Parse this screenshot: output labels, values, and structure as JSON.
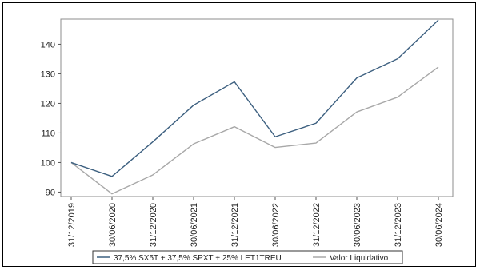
{
  "chart_data": {
    "type": "line",
    "categories": [
      "31/12/2019",
      "30/06/2020",
      "31/12/2020",
      "30/06/2021",
      "31/12/2021",
      "30/06/2022",
      "31/12/2022",
      "30/06/2023",
      "31/12/2023",
      "30/06/2024"
    ],
    "series": [
      {
        "name": "37,5% SX5T + 37,5% SPXT + 25% LET1TREU",
        "color": "#3d6080",
        "values": [
          100,
          95.3,
          107,
          119.4,
          127.3,
          108.7,
          113.3,
          128.6,
          135.1,
          148.2
        ]
      },
      {
        "name": "Valor Liquidativo",
        "color": "#a8a8a8",
        "values": [
          100,
          89.4,
          95.8,
          106.3,
          112.1,
          105.1,
          106.6,
          117.1,
          122.1,
          132.3
        ]
      }
    ],
    "yticks": [
      90,
      100,
      110,
      120,
      130,
      140
    ],
    "ylim": [
      88.5,
      148.5
    ],
    "grid": false,
    "legend_position": "bottom"
  }
}
